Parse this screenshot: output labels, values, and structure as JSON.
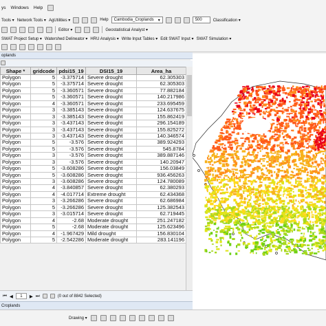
{
  "menubar": {
    "items": [
      "ys",
      "Windows",
      "Help"
    ]
  },
  "toolbar1": {
    "tools_label": "Tools ▾",
    "network_tools_label": "Network Tools ▾",
    "agutilities_label": "AgUtilities ▾",
    "help_label": "Help",
    "layer_select": "Cambodia_Croplands",
    "scale_value": "500",
    "classification_label": "Classification ▾"
  },
  "toolbar2": {
    "editor_label": "Editor ▾",
    "geostatistical_label": "Geostatistical Analyst ▾"
  },
  "toolbar3": {
    "items": [
      "SWAT Project Setup ▾",
      "Watershed Delineator ▾",
      "HRU Analysis ▾",
      "Write Input Tables ▾",
      "Edit SWAT Input ▾",
      "SWAT Simulation ▾"
    ]
  },
  "table_window": {
    "title": "oplands",
    "footer_tab": "Croplands",
    "selection_status": "(0 out of 8842 Selected)",
    "page_value": "1",
    "columns": [
      "Shape *",
      "gridcode",
      "pdsi15_19",
      "DSI15_19",
      "Area_ha"
    ],
    "rows": [
      [
        "Polygon",
        "5",
        "-3.375714",
        "Severe drought",
        "62.305303"
      ],
      [
        "Polygon",
        "5",
        "-3.375714",
        "Severe drought",
        "62.305303"
      ],
      [
        "Polygon",
        "5",
        "-3.360571",
        "Severe drought",
        "77.882184"
      ],
      [
        "Polygon",
        "5",
        "-3.360571",
        "Severe drought",
        "140.217986"
      ],
      [
        "Polygon",
        "4",
        "-3.360571",
        "Severe drought",
        "233.695459"
      ],
      [
        "Polygon",
        "3",
        "-3.385143",
        "Severe drought",
        "124.637675"
      ],
      [
        "Polygon",
        "3",
        "-3.385143",
        "Severe drought",
        "155.862419"
      ],
      [
        "Polygon",
        "3",
        "-3.437143",
        "Severe drought",
        "296.154189"
      ],
      [
        "Polygon",
        "3",
        "-3.437143",
        "Severe drought",
        "155.825272"
      ],
      [
        "Polygon",
        "3",
        "-3.437143",
        "Severe drought",
        "140.346574"
      ],
      [
        "Polygon",
        "5",
        "-3.576",
        "Severe drought",
        "389.924293"
      ],
      [
        "Polygon",
        "5",
        "-3.576",
        "Severe drought",
        "545.8784"
      ],
      [
        "Polygon",
        "3",
        "-3.576",
        "Severe drought",
        "389.887146"
      ],
      [
        "Polygon",
        "3",
        "-3.576",
        "Severe drought",
        "140.20947"
      ],
      [
        "Polygon",
        "5",
        "-3.608286",
        "Severe drought",
        "156.03849"
      ],
      [
        "Polygon",
        "5",
        "-3.608286",
        "Severe drought",
        "936.456263"
      ],
      [
        "Polygon",
        "3",
        "-3.608286",
        "Severe drought",
        "124.780089"
      ],
      [
        "Polygon",
        "4",
        "-3.840857",
        "Severe drought",
        "62.380293"
      ],
      [
        "Polygon",
        "4",
        "-4.017714",
        "Extreme drought",
        "62.434368"
      ],
      [
        "Polygon",
        "3",
        "-3.266286",
        "Severe drought",
        "62.686984"
      ],
      [
        "Polygon",
        "5",
        "-3.266286",
        "Severe drought",
        "125.382543"
      ],
      [
        "Polygon",
        "3",
        "-3.015714",
        "Severe drought",
        "62.719445"
      ],
      [
        "Polygon",
        "4",
        "-2.68",
        "Moderate drought",
        "251.247182"
      ],
      [
        "Polygon",
        "5",
        "-2.68",
        "Moderate drought",
        "125.623496"
      ],
      [
        "Polygon",
        "4",
        "-1.967429",
        "Mild drought",
        "156.830104"
      ],
      [
        "Polygon",
        "5",
        "-2.542286",
        "Moderate drought",
        "283.141196"
      ]
    ]
  },
  "bottom_bar": {
    "drawing_label": "Drawing ▾"
  },
  "map": {
    "colors": {
      "extreme": "#e8001c",
      "severe": "#ff5a1a",
      "severe_light": "#ff8c1f",
      "moderate": "#f7b21c",
      "moderate_light": "#ffd91c",
      "mild": "#e0e51a",
      "near_normal": "#a8d81c",
      "wet": "#6fd114",
      "outline": "#2b2b2b"
    }
  }
}
